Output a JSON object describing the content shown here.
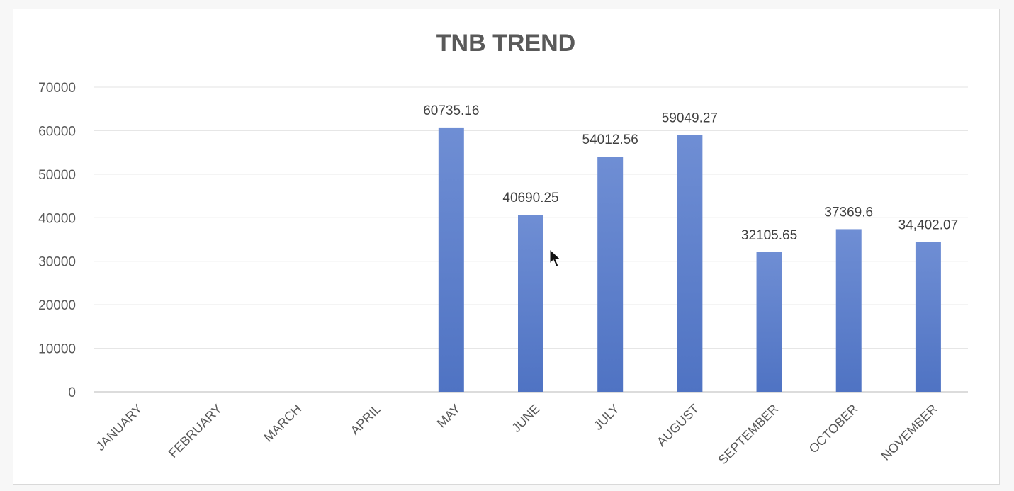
{
  "chart_data": {
    "type": "bar",
    "title": "TNB TREND",
    "xlabel": "",
    "ylabel": "",
    "ylim": [
      0,
      70000
    ],
    "yticks": [
      "0",
      "10000",
      "20000",
      "30000",
      "40000",
      "50000",
      "60000",
      "70000"
    ],
    "grid": true,
    "legend": "none",
    "bar_color": "#4f73c3",
    "categories": [
      "JANUARY",
      "FEBRUARY",
      "MARCH",
      "APRIL",
      "MAY",
      "JUNE",
      "JULY",
      "AUGUST",
      "SEPTEMBER",
      "OCTOBER",
      "NOVEMBER"
    ],
    "values": [
      0,
      0,
      0,
      0,
      60735.16,
      40690.25,
      54012.56,
      59049.27,
      32105.65,
      37369.6,
      34402.07
    ],
    "data_labels": [
      "",
      "",
      "",
      "",
      "60735.16",
      "40690.25",
      "54012.56",
      "59049.27",
      "32105.65",
      "37369.6",
      "34,402.07"
    ]
  }
}
